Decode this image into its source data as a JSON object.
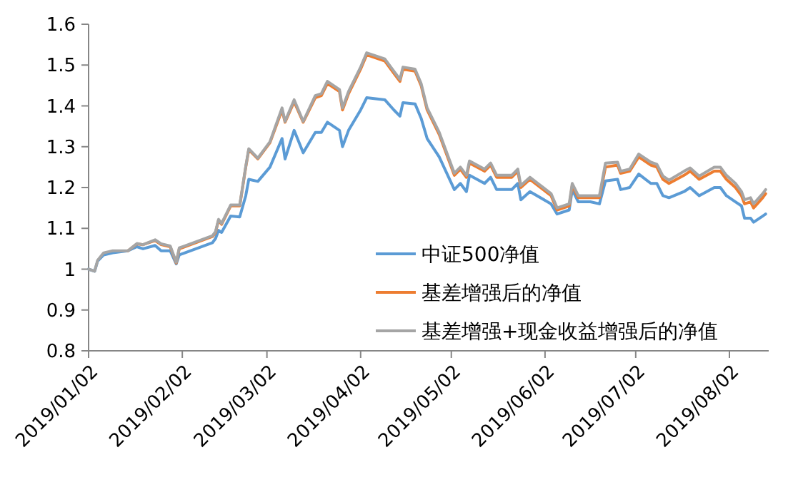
{
  "chart_data": {
    "type": "line",
    "x": [
      "2019-01-02",
      "2019-01-04",
      "2019-01-05",
      "2019-01-07",
      "2019-01-10",
      "2019-01-15",
      "2019-01-18",
      "2019-01-20",
      "2019-01-24",
      "2019-01-26",
      "2019-01-29",
      "2019-01-31",
      "2019-02-01",
      "2019-02-12",
      "2019-02-13",
      "2019-02-14",
      "2019-02-15",
      "2019-02-18",
      "2019-02-21",
      "2019-02-23",
      "2019-02-24",
      "2019-02-27",
      "2019-03-03",
      "2019-03-07",
      "2019-03-08",
      "2019-03-11",
      "2019-03-14",
      "2019-03-18",
      "2019-03-20",
      "2019-03-22",
      "2019-03-26",
      "2019-03-27",
      "2019-03-29",
      "2019-04-02",
      "2019-04-04",
      "2019-04-10",
      "2019-04-13",
      "2019-04-15",
      "2019-04-16",
      "2019-04-20",
      "2019-04-22",
      "2019-04-24",
      "2019-04-28",
      "2019-05-03",
      "2019-05-05",
      "2019-05-07",
      "2019-05-08",
      "2019-05-13",
      "2019-05-15",
      "2019-05-17",
      "2019-05-22",
      "2019-05-24",
      "2019-05-25",
      "2019-05-28",
      "2019-06-04",
      "2019-06-06",
      "2019-06-10",
      "2019-06-11",
      "2019-06-13",
      "2019-06-17",
      "2019-06-20",
      "2019-06-22",
      "2019-06-26",
      "2019-06-27",
      "2019-06-30",
      "2019-07-03",
      "2019-07-07",
      "2019-07-09",
      "2019-07-11",
      "2019-07-13",
      "2019-07-18",
      "2019-07-20",
      "2019-07-23",
      "2019-07-28",
      "2019-07-30",
      "2019-08-01",
      "2019-08-04",
      "2019-08-06",
      "2019-08-07",
      "2019-08-09",
      "2019-08-10",
      "2019-08-13",
      "2019-08-14"
    ],
    "series": [
      {
        "name": "中证500净值",
        "color": "#5b9bd5",
        "values": [
          1,
          0.995,
          1.02,
          1.035,
          1.04,
          1.045,
          1.055,
          1.05,
          1.058,
          1.045,
          1.045,
          1.013,
          1.035,
          1.065,
          1.075,
          1.095,
          1.09,
          1.13,
          1.128,
          1.18,
          1.22,
          1.215,
          1.25,
          1.32,
          1.27,
          1.34,
          1.285,
          1.335,
          1.335,
          1.36,
          1.34,
          1.3,
          1.34,
          1.39,
          1.42,
          1.415,
          1.39,
          1.375,
          1.408,
          1.405,
          1.37,
          1.32,
          1.275,
          1.195,
          1.21,
          1.19,
          1.23,
          1.21,
          1.225,
          1.195,
          1.195,
          1.21,
          1.17,
          1.19,
          1.16,
          1.135,
          1.145,
          1.195,
          1.165,
          1.165,
          1.16,
          1.216,
          1.22,
          1.195,
          1.2,
          1.233,
          1.21,
          1.21,
          1.18,
          1.175,
          1.19,
          1.2,
          1.18,
          1.2,
          1.2,
          1.18,
          1.165,
          1.155,
          1.125,
          1.125,
          1.115,
          1.13,
          1.135
        ]
      },
      {
        "name": "基差增强后的净值",
        "color": "#ed7d31",
        "values": [
          null,
          null,
          null,
          null,
          null,
          1.045,
          1.062,
          1.06,
          1.07,
          1.06,
          1.055,
          1.015,
          1.05,
          1.08,
          1.09,
          1.12,
          1.11,
          1.155,
          1.155,
          1.25,
          1.293,
          1.27,
          1.31,
          1.39,
          1.36,
          1.41,
          1.36,
          1.42,
          1.425,
          1.455,
          1.435,
          1.39,
          1.43,
          1.49,
          1.525,
          1.51,
          1.48,
          1.46,
          1.49,
          1.485,
          1.45,
          1.39,
          1.33,
          1.23,
          1.245,
          1.225,
          1.26,
          1.24,
          1.255,
          1.225,
          1.225,
          1.24,
          1.2,
          1.22,
          1.18,
          1.145,
          1.155,
          1.205,
          1.175,
          1.175,
          1.175,
          1.25,
          1.255,
          1.235,
          1.24,
          1.275,
          1.255,
          1.25,
          1.22,
          1.21,
          1.23,
          1.24,
          1.22,
          1.24,
          1.24,
          1.22,
          1.2,
          1.18,
          1.16,
          1.165,
          1.15,
          1.175,
          1.185
        ]
      },
      {
        "name": "基差增强+现金收益增强后的净值",
        "color": "#a5a5a5",
        "values": [
          1,
          0.995,
          1.022,
          1.04,
          1.045,
          1.045,
          1.063,
          1.06,
          1.072,
          1.062,
          1.057,
          1.017,
          1.052,
          1.082,
          1.092,
          1.122,
          1.112,
          1.157,
          1.157,
          1.252,
          1.295,
          1.272,
          1.312,
          1.395,
          1.362,
          1.415,
          1.362,
          1.425,
          1.43,
          1.46,
          1.44,
          1.395,
          1.435,
          1.495,
          1.53,
          1.515,
          1.485,
          1.465,
          1.495,
          1.49,
          1.455,
          1.395,
          1.335,
          1.235,
          1.25,
          1.23,
          1.265,
          1.245,
          1.26,
          1.23,
          1.23,
          1.245,
          1.205,
          1.225,
          1.185,
          1.15,
          1.16,
          1.21,
          1.18,
          1.18,
          1.18,
          1.26,
          1.262,
          1.24,
          1.245,
          1.282,
          1.262,
          1.257,
          1.228,
          1.218,
          1.24,
          1.248,
          1.228,
          1.25,
          1.25,
          1.23,
          1.21,
          1.19,
          1.17,
          1.175,
          1.16,
          1.185,
          1.195
        ]
      }
    ],
    "xlim": [
      "2019-01-02",
      "2019-08-15"
    ],
    "xticks": [
      {
        "value": "2019-01-02",
        "label": "2019/01/02"
      },
      {
        "value": "2019-02-02",
        "label": "2019/02/02"
      },
      {
        "value": "2019-03-02",
        "label": "2019/03/02"
      },
      {
        "value": "2019-04-02",
        "label": "2019/04/02"
      },
      {
        "value": "2019-05-02",
        "label": "2019/05/02"
      },
      {
        "value": "2019-06-02",
        "label": "2019/06/02"
      },
      {
        "value": "2019-07-02",
        "label": "2019/07/02"
      },
      {
        "value": "2019-08-02",
        "label": "2019/08/02"
      }
    ],
    "ylim": [
      0.8,
      1.6
    ],
    "yticks": [
      0.8,
      0.9,
      1,
      1.1,
      1.2,
      1.3,
      1.4,
      1.5,
      1.6
    ],
    "grid": false,
    "legend": "bottom right",
    "marker": "none",
    "line_style": "solid"
  }
}
